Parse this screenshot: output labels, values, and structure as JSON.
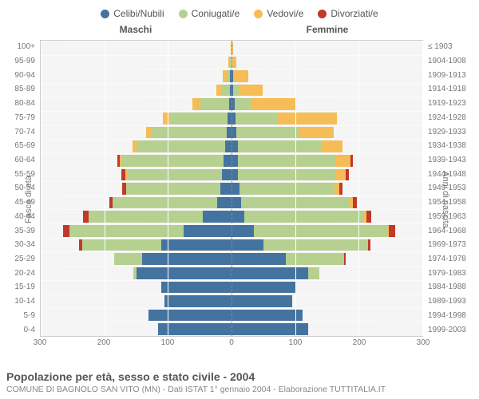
{
  "legend": [
    {
      "label": "Celibi/Nubili",
      "color": "#4573a0"
    },
    {
      "label": "Coniugati/e",
      "color": "#b6d090"
    },
    {
      "label": "Vedovi/e",
      "color": "#f6bd57"
    },
    {
      "label": "Divorziati/e",
      "color": "#c0392b"
    }
  ],
  "side_titles": {
    "male": "Maschi",
    "female": "Femmine"
  },
  "y_label_left": "Fasce di età",
  "y_label_right": "Anni di nascita",
  "x_ticks": [
    300,
    200,
    100,
    0,
    100,
    200,
    300
  ],
  "x_max": 300,
  "age_labels": [
    "0-4",
    "5-9",
    "10-14",
    "15-19",
    "20-24",
    "25-29",
    "30-34",
    "35-39",
    "40-44",
    "45-49",
    "50-54",
    "55-59",
    "60-64",
    "65-69",
    "70-74",
    "75-79",
    "80-84",
    "85-89",
    "90-94",
    "95-99",
    "100+"
  ],
  "birth_labels": [
    "1999-2003",
    "1994-1998",
    "1989-1993",
    "1984-1988",
    "1979-1983",
    "1974-1978",
    "1969-1973",
    "1964-1968",
    "1959-1963",
    "1954-1958",
    "1949-1953",
    "1944-1948",
    "1939-1943",
    "1934-1938",
    "1929-1933",
    "1924-1928",
    "1919-1923",
    "1914-1918",
    "1909-1913",
    "1904-1908",
    "≤ 1903"
  ],
  "colors": {
    "single": "#4573a0",
    "married": "#b6d090",
    "widowed": "#f6bd57",
    "divorced": "#c0392b"
  },
  "plot_bg": "#f5f5f5",
  "grid_color": "#ffffff",
  "title": "Popolazione per età, sesso e stato civile - 2004",
  "subtitle": "COMUNE DI BAGNOLO SAN VITO (MN) - Dati ISTAT 1° gennaio 2004 - Elaborazione TUTTITALIA.IT",
  "male": [
    {
      "s": 115,
      "m": 0,
      "w": 0,
      "d": 0
    },
    {
      "s": 130,
      "m": 0,
      "w": 0,
      "d": 0
    },
    {
      "s": 105,
      "m": 0,
      "w": 0,
      "d": 0
    },
    {
      "s": 110,
      "m": 0,
      "w": 0,
      "d": 0
    },
    {
      "s": 150,
      "m": 5,
      "w": 0,
      "d": 0
    },
    {
      "s": 140,
      "m": 45,
      "w": 0,
      "d": 0
    },
    {
      "s": 110,
      "m": 125,
      "w": 0,
      "d": 5
    },
    {
      "s": 75,
      "m": 180,
      "w": 0,
      "d": 10
    },
    {
      "s": 45,
      "m": 180,
      "w": 0,
      "d": 8
    },
    {
      "s": 22,
      "m": 165,
      "w": 0,
      "d": 5
    },
    {
      "s": 18,
      "m": 148,
      "w": 0,
      "d": 6
    },
    {
      "s": 15,
      "m": 150,
      "w": 2,
      "d": 6
    },
    {
      "s": 12,
      "m": 160,
      "w": 4,
      "d": 4
    },
    {
      "s": 10,
      "m": 140,
      "w": 6,
      "d": 0
    },
    {
      "s": 8,
      "m": 118,
      "w": 8,
      "d": 0
    },
    {
      "s": 6,
      "m": 92,
      "w": 10,
      "d": 0
    },
    {
      "s": 4,
      "m": 45,
      "w": 12,
      "d": 0
    },
    {
      "s": 2,
      "m": 14,
      "w": 8,
      "d": 0
    },
    {
      "s": 2,
      "m": 6,
      "w": 6,
      "d": 0
    },
    {
      "s": 0,
      "m": 2,
      "w": 3,
      "d": 0
    },
    {
      "s": 0,
      "m": 0,
      "w": 1,
      "d": 0
    }
  ],
  "female": [
    {
      "s": 120,
      "m": 0,
      "w": 0,
      "d": 0
    },
    {
      "s": 112,
      "m": 0,
      "w": 0,
      "d": 0
    },
    {
      "s": 95,
      "m": 0,
      "w": 0,
      "d": 0
    },
    {
      "s": 100,
      "m": 0,
      "w": 0,
      "d": 0
    },
    {
      "s": 120,
      "m": 18,
      "w": 0,
      "d": 0
    },
    {
      "s": 85,
      "m": 92,
      "w": 0,
      "d": 2
    },
    {
      "s": 50,
      "m": 165,
      "w": 0,
      "d": 4
    },
    {
      "s": 35,
      "m": 210,
      "w": 2,
      "d": 10
    },
    {
      "s": 20,
      "m": 188,
      "w": 4,
      "d": 8
    },
    {
      "s": 15,
      "m": 170,
      "w": 6,
      "d": 6
    },
    {
      "s": 12,
      "m": 150,
      "w": 8,
      "d": 5
    },
    {
      "s": 10,
      "m": 155,
      "w": 14,
      "d": 5
    },
    {
      "s": 10,
      "m": 155,
      "w": 22,
      "d": 4
    },
    {
      "s": 10,
      "m": 130,
      "w": 35,
      "d": 0
    },
    {
      "s": 8,
      "m": 98,
      "w": 55,
      "d": 0
    },
    {
      "s": 6,
      "m": 65,
      "w": 95,
      "d": 0
    },
    {
      "s": 5,
      "m": 25,
      "w": 70,
      "d": 0
    },
    {
      "s": 3,
      "m": 8,
      "w": 38,
      "d": 0
    },
    {
      "s": 2,
      "m": 2,
      "w": 22,
      "d": 0
    },
    {
      "s": 0,
      "m": 0,
      "w": 8,
      "d": 0
    },
    {
      "s": 0,
      "m": 0,
      "w": 2,
      "d": 0
    }
  ]
}
